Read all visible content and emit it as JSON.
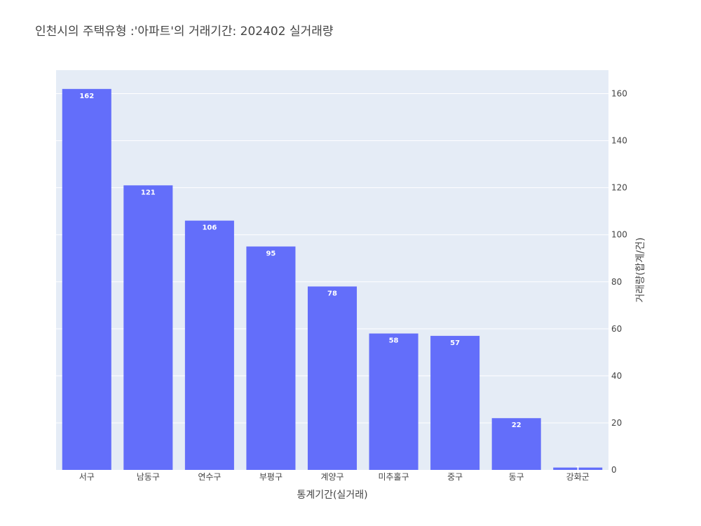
{
  "chart_data": {
    "type": "bar",
    "title": "인천시의 주택유형 :'아파트'의 거래기간: 202402 실거래량",
    "xlabel": "통계기간(실거래)",
    "ylabel": "거래량(합계/건)",
    "categories": [
      "서구",
      "남동구",
      "연수구",
      "부평구",
      "계양구",
      "미추홀구",
      "중구",
      "동구",
      "강화군"
    ],
    "values": [
      162,
      121,
      106,
      95,
      78,
      58,
      57,
      22,
      1
    ],
    "ylim": [
      0,
      170
    ],
    "yticks": [
      0,
      20,
      40,
      60,
      80,
      100,
      120,
      140,
      160
    ],
    "yaxis_side": "right",
    "grid": true,
    "colors": {
      "bar": "#636efa",
      "plot_bg": "#e5ecf6",
      "grid": "#ffffff"
    }
  }
}
